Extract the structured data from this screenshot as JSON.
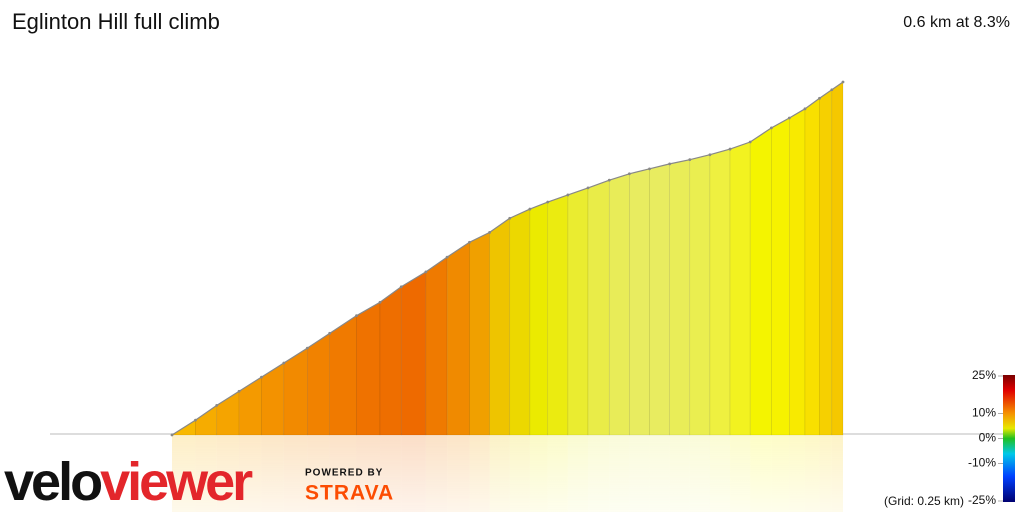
{
  "chart_data": {
    "type": "area",
    "title": "Eglinton Hill full climb",
    "subtitle": "0.6 km at 8.3%",
    "grid_note": "(Grid: 0.25 km)",
    "x": [
      0,
      0.021,
      0.04,
      0.06,
      0.08,
      0.1,
      0.121,
      0.141,
      0.165,
      0.186,
      0.205,
      0.227,
      0.246,
      0.266,
      0.284,
      0.302,
      0.32,
      0.336,
      0.354,
      0.372,
      0.391,
      0.409,
      0.427,
      0.445,
      0.463,
      0.481,
      0.499,
      0.517,
      0.536,
      0.552,
      0.566,
      0.579,
      0.59,
      0.6
    ],
    "values": [
      0,
      2.1,
      4.2,
      6.2,
      8.2,
      10.2,
      12.3,
      14.4,
      16.9,
      18.8,
      21,
      23.1,
      25.2,
      27.3,
      28.7,
      30.7,
      32,
      33,
      34,
      35,
      36.1,
      37,
      37.7,
      38.4,
      39,
      39.7,
      40.5,
      41.5,
      43.5,
      44.9,
      46.2,
      47.7,
      48.9,
      50
    ],
    "colors": [
      "#f8b800",
      "#f6ac00",
      "#f5a400",
      "#f49a00",
      "#f39200",
      "#f28a00",
      "#f18200",
      "#f07a00",
      "#ef7200",
      "#ee6e00",
      "#ee6a00",
      "#ef7a00",
      "#f08a00",
      "#f0a000",
      "#eec400",
      "#ecd800",
      "#ebea00",
      "#ebeb10",
      "#eaec30",
      "#e9ec48",
      "#e8ec58",
      "#e8ec60",
      "#e8ec60",
      "#e9ed58",
      "#eaee50",
      "#eef040",
      "#f2f220",
      "#f4f400",
      "#f6f200",
      "#f8ea00",
      "#f8e000",
      "#f6d000",
      "#f5c800"
    ],
    "xlim": [
      0,
      0.6
    ],
    "ylim": [
      0,
      50
    ],
    "colorbar": {
      "ticks": [
        {
          "value": 25,
          "label": "25%"
        },
        {
          "value": 10,
          "label": "10%"
        },
        {
          "value": 0,
          "label": "0%"
        },
        {
          "value": -10,
          "label": "-10%"
        },
        {
          "value": -25,
          "label": "-25%"
        }
      ]
    }
  },
  "branding": {
    "logo_part1": "velo",
    "logo_part2": "viewer",
    "powered_by": "POWERED BY",
    "strava": "STRAVA"
  }
}
